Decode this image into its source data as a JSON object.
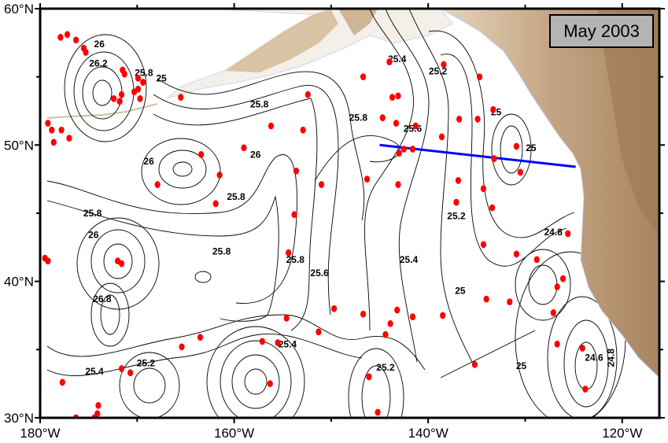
{
  "title": "May 2003",
  "map": {
    "projection": "equirectangular",
    "lon_range": [
      -180,
      -116.2
    ],
    "lat_range": [
      30,
      60
    ],
    "x_ticks": [
      {
        "lon": -180,
        "label": "180°W"
      },
      {
        "lon": -160,
        "label": "160°W"
      },
      {
        "lon": -140,
        "label": "140°W"
      },
      {
        "lon": -120,
        "label": "120°W"
      }
    ],
    "y_ticks": [
      {
        "lat": 60,
        "label": "60°N"
      },
      {
        "lat": 50,
        "label": "50°N"
      },
      {
        "lat": 40,
        "label": "40°N"
      },
      {
        "lat": 30,
        "label": "30°N"
      }
    ],
    "minor_x_ticks": [
      -170,
      -150,
      -130
    ],
    "minor_y_ticks": [
      55,
      45,
      35
    ],
    "colors": {
      "station": "#ff0000",
      "section_line": "#0000ff",
      "land_low": "#e8d9c4",
      "land_high": "#a88462",
      "contour": "#000000",
      "title_box": "#b4b4b4"
    }
  },
  "section_line": [
    [
      -145.0,
      50.0
    ],
    [
      -124.8,
      48.4
    ]
  ],
  "contour_labels": [
    {
      "text": "26",
      "lon": -173.9,
      "lat": 57.4
    },
    {
      "text": "26.2",
      "lon": -174.0,
      "lat": 56.0
    },
    {
      "text": "25.8",
      "lon": -169.3,
      "lat": 55.3
    },
    {
      "text": "25",
      "lon": -167.5,
      "lat": 54.9
    },
    {
      "text": "25.8",
      "lon": -157.4,
      "lat": 53.0
    },
    {
      "text": "25.8",
      "lon": -147.2,
      "lat": 52.0
    },
    {
      "text": "25.4",
      "lon": -143.2,
      "lat": 56.3
    },
    {
      "text": "25.2",
      "lon": -139.0,
      "lat": 55.4
    },
    {
      "text": "25.6",
      "lon": -141.6,
      "lat": 51.2
    },
    {
      "text": "25",
      "lon": -133.0,
      "lat": 52.4
    },
    {
      "text": "25",
      "lon": -129.4,
      "lat": 49.8
    },
    {
      "text": "26",
      "lon": -168.8,
      "lat": 48.8
    },
    {
      "text": "26",
      "lon": -157.8,
      "lat": 49.3
    },
    {
      "text": "25.8",
      "lon": -159.8,
      "lat": 46.2
    },
    {
      "text": "25.8",
      "lon": -174.6,
      "lat": 45.0
    },
    {
      "text": "26",
      "lon": -174.5,
      "lat": 43.4
    },
    {
      "text": "25.8",
      "lon": -161.3,
      "lat": 42.2
    },
    {
      "text": "25.8",
      "lon": -153.7,
      "lat": 41.6
    },
    {
      "text": "25.6",
      "lon": -151.2,
      "lat": 40.6
    },
    {
      "text": "25.4",
      "lon": -142.0,
      "lat": 41.6
    },
    {
      "text": "25.2",
      "lon": -137.1,
      "lat": 44.8
    },
    {
      "text": "24.8",
      "lon": -127.1,
      "lat": 43.6
    },
    {
      "text": "25",
      "lon": -136.7,
      "lat": 39.3
    },
    {
      "text": "26.8",
      "lon": -173.6,
      "lat": 38.7
    },
    {
      "text": "25.4",
      "lon": -174.4,
      "lat": 33.4
    },
    {
      "text": "25.2",
      "lon": -169.1,
      "lat": 34.0
    },
    {
      "text": "25.4",
      "lon": -154.5,
      "lat": 35.4
    },
    {
      "text": "25.2",
      "lon": -144.4,
      "lat": 33.7
    },
    {
      "text": "25",
      "lon": -130.4,
      "lat": 33.8
    },
    {
      "text": "24.6",
      "lon": -122.9,
      "lat": 34.4
    },
    {
      "text": "24.8",
      "lon": -121.9,
      "lat": 34.4
    }
  ],
  "stations": [
    [
      -177.9,
      57.9
    ],
    [
      -177.2,
      58.1
    ],
    [
      -176.3,
      57.7
    ],
    [
      -175.5,
      57.1
    ],
    [
      -175.3,
      56.8
    ],
    [
      -171.5,
      55.5
    ],
    [
      -171.3,
      55.2
    ],
    [
      -169.9,
      54.9
    ],
    [
      -169.4,
      54.6
    ],
    [
      -169.9,
      54.1
    ],
    [
      -171.6,
      53.7
    ],
    [
      -172.4,
      53.4
    ],
    [
      -171.8,
      53.2
    ],
    [
      -170.3,
      53.9
    ],
    [
      -169.7,
      53.4
    ],
    [
      -165.5,
      53.5
    ],
    [
      -179.2,
      51.6
    ],
    [
      -178.8,
      51.1
    ],
    [
      -177.8,
      51.1
    ],
    [
      -178.6,
      50.2
    ],
    [
      -177.0,
      50.5
    ],
    [
      -179.5,
      41.7
    ],
    [
      -179.2,
      41.5
    ],
    [
      -172.0,
      41.5
    ],
    [
      -171.6,
      41.3
    ],
    [
      -163.4,
      49.3
    ],
    [
      -159.0,
      49.8
    ],
    [
      -167.9,
      47.1
    ],
    [
      -161.5,
      47.8
    ],
    [
      -161.9,
      45.7
    ],
    [
      -153.6,
      48.1
    ],
    [
      -151.0,
      47.1
    ],
    [
      -153.8,
      44.9
    ],
    [
      -154.4,
      42.1
    ],
    [
      -146.3,
      47.5
    ],
    [
      -143.1,
      47.1
    ],
    [
      -143.0,
      49.4
    ],
    [
      -142.5,
      49.7
    ],
    [
      -141.6,
      49.7
    ],
    [
      -136.9,
      47.4
    ],
    [
      -137.1,
      45.8
    ],
    [
      -134.3,
      46.8
    ],
    [
      -133.4,
      45.4
    ],
    [
      -133.2,
      49.0
    ],
    [
      -130.9,
      49.9
    ],
    [
      -130.5,
      48.0
    ],
    [
      -134.3,
      42.7
    ],
    [
      -130.9,
      42.0
    ],
    [
      -128.8,
      41.6
    ],
    [
      -125.6,
      43.5
    ],
    [
      -126.1,
      40.2
    ],
    [
      -126.7,
      39.6
    ],
    [
      -144.0,
      56.1
    ],
    [
      -138.4,
      55.9
    ],
    [
      -146.7,
      55.0
    ],
    [
      -134.7,
      55.0
    ],
    [
      -152.4,
      53.7
    ],
    [
      -143.7,
      53.5
    ],
    [
      -143.1,
      53.6
    ],
    [
      -144.7,
      52.0
    ],
    [
      -143.3,
      51.6
    ],
    [
      -141.3,
      51.4
    ],
    [
      -156.2,
      51.4
    ],
    [
      -152.9,
      51.1
    ],
    [
      -136.8,
      51.9
    ],
    [
      -134.9,
      51.9
    ],
    [
      -133.3,
      52.6
    ],
    [
      -138.6,
      50.6
    ],
    [
      -154.6,
      37.3
    ],
    [
      -149.7,
      38.0
    ],
    [
      -146.7,
      37.6
    ],
    [
      -143.2,
      37.9
    ],
    [
      -141.6,
      37.4
    ],
    [
      -143.9,
      36.9
    ],
    [
      -144.4,
      36.1
    ],
    [
      -151.3,
      36.3
    ],
    [
      -138.5,
      37.5
    ],
    [
      -134.0,
      38.7
    ],
    [
      -131.6,
      38.5
    ],
    [
      -127.1,
      37.7
    ],
    [
      -126.7,
      35.4
    ],
    [
      -124.1,
      35.1
    ],
    [
      -123.8,
      32.1
    ],
    [
      -135.2,
      33.9
    ],
    [
      -146.1,
      33.0
    ],
    [
      -145.2,
      30.4
    ],
    [
      -156.3,
      32.5
    ],
    [
      -155.5,
      35.5
    ],
    [
      -157.1,
      35.6
    ],
    [
      -165.4,
      35.2
    ],
    [
      -163.5,
      35.9
    ],
    [
      -171.6,
      33.6
    ],
    [
      -170.7,
      33.3
    ],
    [
      -177.7,
      32.6
    ],
    [
      -174.0,
      30.9
    ],
    [
      -174.1,
      30.3
    ],
    [
      -176.3,
      30.0
    ],
    [
      -174.4,
      30.0
    ]
  ]
}
